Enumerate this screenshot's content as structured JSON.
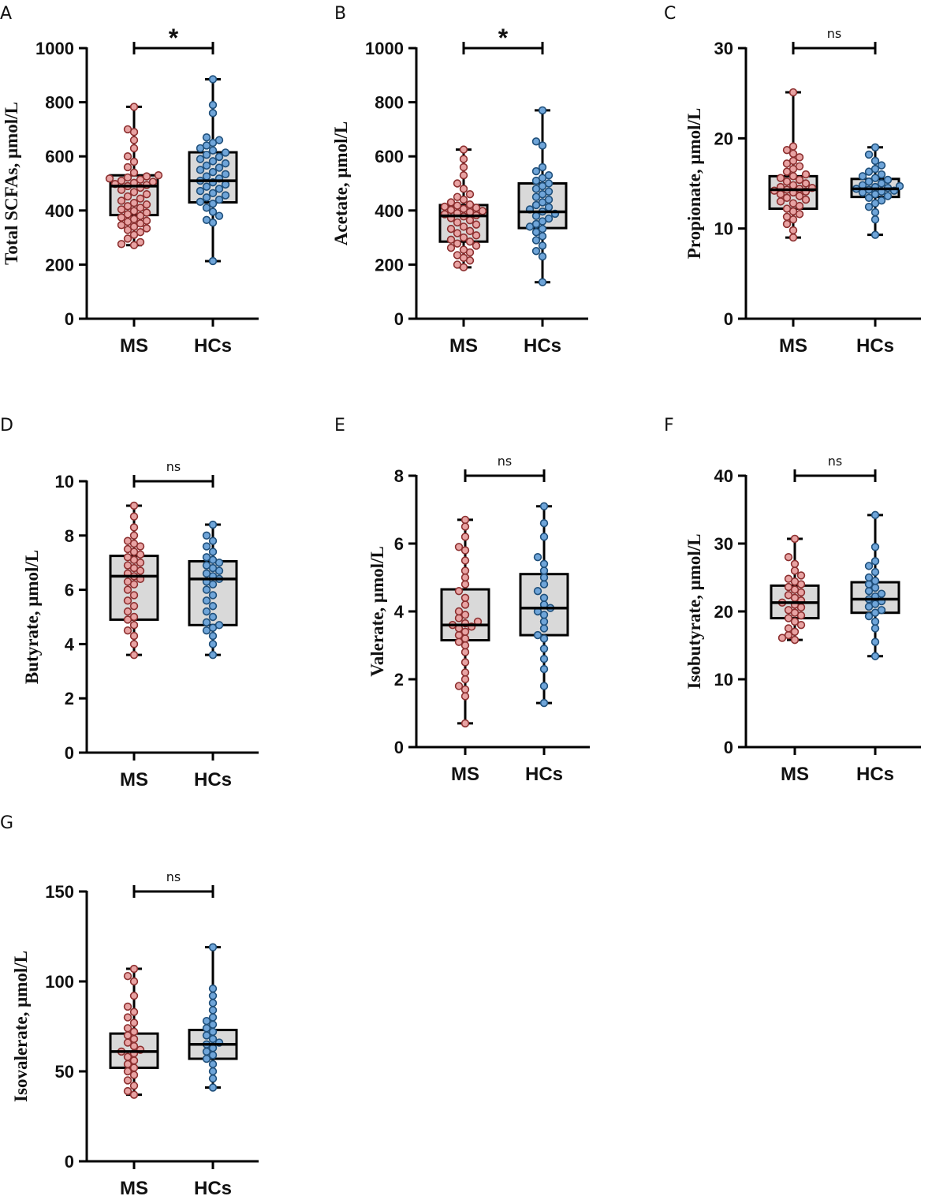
{
  "figure": {
    "title": ""
  },
  "colors": {
    "ms_fill": "#e8a3a3",
    "ms_stroke": "#8c2f2f",
    "hc_fill": "#6fa5d9",
    "hc_stroke": "#1f4f7a",
    "box_fill": "#d9d9d9",
    "axis": "#000000"
  },
  "chart_data": [
    {
      "type": "box",
      "panel": "A",
      "title": "",
      "ylabel": "Total SCFAs, μmol/L",
      "xlabel": "",
      "ylim": [
        0,
        1000
      ],
      "yticks": [
        0,
        200,
        400,
        600,
        800,
        1000
      ],
      "categories": [
        "MS",
        "HCs"
      ],
      "significance": "*",
      "series": [
        {
          "name": "MS",
          "min": 272,
          "q1": 383,
          "median": 490,
          "q3": 530,
          "max": 783,
          "points": [
            272,
            276,
            283,
            296,
            310,
            320,
            328,
            334,
            340,
            346,
            352,
            358,
            362,
            368,
            374,
            380,
            386,
            392,
            398,
            404,
            410,
            416,
            422,
            428,
            436,
            444,
            452,
            460,
            468,
            476,
            484,
            490,
            494,
            498,
            502,
            506,
            510,
            514,
            518,
            522,
            526,
            530,
            540,
            560,
            580,
            600,
            630,
            660,
            690,
            700,
            783
          ]
        },
        {
          "name": "HCs",
          "min": 213,
          "q1": 430,
          "median": 510,
          "q3": 615,
          "max": 885,
          "points": [
            213,
            355,
            365,
            380,
            395,
            410,
            425,
            432,
            440,
            448,
            456,
            464,
            472,
            480,
            488,
            496,
            504,
            510,
            518,
            526,
            534,
            542,
            550,
            558,
            566,
            574,
            582,
            590,
            598,
            606,
            614,
            622,
            630,
            640,
            650,
            660,
            670,
            760,
            790,
            885
          ]
        }
      ]
    },
    {
      "type": "box",
      "panel": "B",
      "title": "",
      "ylabel": "Acetate, μmol/L",
      "xlabel": "",
      "ylim": [
        0,
        1000
      ],
      "yticks": [
        0,
        200,
        400,
        600,
        800,
        1000
      ],
      "categories": [
        "MS",
        "HCs"
      ],
      "significance": "*",
      "series": [
        {
          "name": "MS",
          "min": 190,
          "q1": 285,
          "median": 380,
          "q3": 420,
          "max": 625,
          "points": [
            190,
            200,
            215,
            225,
            235,
            245,
            255,
            262,
            270,
            278,
            285,
            292,
            300,
            308,
            316,
            324,
            332,
            340,
            348,
            356,
            364,
            372,
            378,
            382,
            386,
            390,
            394,
            398,
            402,
            406,
            410,
            414,
            418,
            422,
            430,
            440,
            450,
            460,
            480,
            500,
            530,
            560,
            590,
            625
          ]
        },
        {
          "name": "HCs",
          "min": 135,
          "q1": 335,
          "median": 395,
          "q3": 500,
          "max": 770,
          "points": [
            135,
            230,
            250,
            270,
            290,
            305,
            320,
            332,
            340,
            350,
            360,
            370,
            380,
            388,
            396,
            404,
            412,
            420,
            430,
            440,
            450,
            460,
            470,
            480,
            490,
            500,
            510,
            520,
            530,
            545,
            560,
            640,
            655,
            770
          ]
        }
      ]
    },
    {
      "type": "box",
      "panel": "C",
      "title": "",
      "ylabel": "Propionate, μmol/L",
      "xlabel": "",
      "ylim": [
        0,
        30
      ],
      "yticks": [
        0,
        10,
        20,
        30
      ],
      "categories": [
        "MS",
        "HCs"
      ],
      "significance": "ns",
      "series": [
        {
          "name": "MS",
          "min": 9,
          "q1": 12.2,
          "median": 14.3,
          "q3": 15.8,
          "max": 25.1,
          "points": [
            9.0,
            9.8,
            10.5,
            11.0,
            11.3,
            11.6,
            11.9,
            12.2,
            12.5,
            12.8,
            13.0,
            13.2,
            13.4,
            13.6,
            13.8,
            14.0,
            14.1,
            14.2,
            14.3,
            14.4,
            14.5,
            14.6,
            14.8,
            15.0,
            15.2,
            15.4,
            15.6,
            15.8,
            16.0,
            16.3,
            16.6,
            16.9,
            17.2,
            17.5,
            17.9,
            18.3,
            18.7,
            19.1,
            25.1
          ]
        },
        {
          "name": "HCs",
          "min": 9.3,
          "q1": 13.5,
          "median": 14.4,
          "q3": 15.5,
          "max": 19,
          "points": [
            9.3,
            11.0,
            11.8,
            12.4,
            12.8,
            13.1,
            13.4,
            13.6,
            13.8,
            14.0,
            14.1,
            14.2,
            14.3,
            14.4,
            14.5,
            14.6,
            14.7,
            14.8,
            15.0,
            15.2,
            15.4,
            15.6,
            15.8,
            16.0,
            16.3,
            16.6,
            17.0,
            17.5,
            18.2,
            19.0
          ]
        }
      ]
    },
    {
      "type": "box",
      "panel": "D",
      "title": "",
      "ylabel": "Butyrate, μmol/L",
      "xlabel": "",
      "ylim": [
        0,
        10
      ],
      "yticks": [
        0,
        2,
        4,
        6,
        8,
        10
      ],
      "categories": [
        "MS",
        "HCs"
      ],
      "significance": "ns",
      "series": [
        {
          "name": "MS",
          "min": 3.6,
          "q1": 4.9,
          "median": 6.5,
          "q3": 7.25,
          "max": 9.1,
          "points": [
            3.6,
            4.0,
            4.3,
            4.5,
            4.7,
            4.9,
            5.0,
            5.2,
            5.4,
            5.6,
            5.8,
            6.0,
            6.2,
            6.3,
            6.4,
            6.5,
            6.6,
            6.7,
            6.8,
            6.9,
            7.0,
            7.1,
            7.2,
            7.3,
            7.4,
            7.5,
            7.6,
            7.7,
            7.8,
            8.0,
            8.3,
            8.7,
            9.1
          ]
        },
        {
          "name": "HCs",
          "min": 3.6,
          "q1": 4.7,
          "median": 6.4,
          "q3": 7.05,
          "max": 8.4,
          "points": [
            3.6,
            4.0,
            4.3,
            4.5,
            4.6,
            4.7,
            4.8,
            5.0,
            5.2,
            5.4,
            5.6,
            5.8,
            6.0,
            6.2,
            6.3,
            6.4,
            6.5,
            6.6,
            6.7,
            6.8,
            6.9,
            7.0,
            7.1,
            7.2,
            7.4,
            7.6,
            7.8,
            8.0,
            8.4
          ]
        }
      ]
    },
    {
      "type": "box",
      "panel": "E",
      "title": "",
      "ylabel": "Valerate, μmol/L",
      "xlabel": "",
      "ylim": [
        0,
        8
      ],
      "yticks": [
        0,
        2,
        4,
        6,
        8
      ],
      "categories": [
        "MS",
        "HCs"
      ],
      "significance": "ns",
      "series": [
        {
          "name": "MS",
          "min": 0.7,
          "q1": 3.15,
          "median": 3.6,
          "q3": 4.65,
          "max": 6.7,
          "points": [
            0.7,
            1.5,
            1.7,
            1.8,
            2.0,
            2.2,
            2.5,
            2.8,
            3.0,
            3.1,
            3.2,
            3.3,
            3.4,
            3.5,
            3.55,
            3.6,
            3.65,
            3.7,
            3.8,
            3.9,
            4.0,
            4.2,
            4.4,
            4.6,
            4.8,
            5.0,
            5.2,
            5.5,
            5.8,
            5.9,
            6.2,
            6.5,
            6.7
          ]
        },
        {
          "name": "HCs",
          "min": 1.3,
          "q1": 3.3,
          "median": 4.1,
          "q3": 5.1,
          "max": 7.1,
          "points": [
            1.3,
            1.8,
            2.3,
            2.6,
            2.9,
            3.2,
            3.3,
            3.5,
            3.7,
            3.9,
            4.0,
            4.1,
            4.2,
            4.4,
            4.6,
            4.8,
            5.0,
            5.2,
            5.4,
            5.6,
            6.2,
            6.6,
            7.1
          ]
        }
      ]
    },
    {
      "type": "box",
      "panel": "F",
      "title": "",
      "ylabel": "Isobutyrate, μmol/L",
      "xlabel": "",
      "ylim": [
        0,
        40
      ],
      "yticks": [
        0,
        10,
        20,
        30,
        40
      ],
      "categories": [
        "MS",
        "HCs"
      ],
      "significance": "ns",
      "series": [
        {
          "name": "MS",
          "min": 15.8,
          "q1": 19,
          "median": 21.3,
          "q3": 23.8,
          "max": 30.7,
          "points": [
            15.8,
            16.1,
            16.5,
            17.0,
            17.5,
            18.0,
            18.5,
            19.0,
            19.4,
            19.8,
            20.2,
            20.6,
            21.0,
            21.3,
            21.6,
            22.0,
            22.4,
            22.8,
            23.2,
            23.6,
            24.0,
            24.4,
            24.8,
            25.3,
            26.0,
            27.0,
            28.0,
            30.7
          ]
        },
        {
          "name": "HCs",
          "min": 13.4,
          "q1": 19.8,
          "median": 21.8,
          "q3": 24.3,
          "max": 34.2,
          "points": [
            13.4,
            15.5,
            17.5,
            18.5,
            19.3,
            19.8,
            20.2,
            20.7,
            21.1,
            21.5,
            21.8,
            22.2,
            22.6,
            23.0,
            23.5,
            24.0,
            24.5,
            25.0,
            25.8,
            26.7,
            27.4,
            29.5,
            34.2
          ]
        }
      ]
    },
    {
      "type": "box",
      "panel": "G",
      "title": "",
      "ylabel": "Isovalerate, μmol/L",
      "xlabel": "",
      "ylim": [
        0,
        150
      ],
      "yticks": [
        0,
        50,
        100,
        150
      ],
      "categories": [
        "MS",
        "HCs"
      ],
      "significance": "ns",
      "series": [
        {
          "name": "MS",
          "min": 37,
          "q1": 52,
          "median": 61,
          "q3": 71,
          "max": 107,
          "points": [
            37,
            39,
            42,
            45,
            48,
            50,
            52,
            54,
            56,
            58,
            60,
            61,
            62,
            64,
            66,
            68,
            70,
            72,
            74,
            77,
            80,
            83,
            86,
            92,
            100,
            103,
            107
          ]
        },
        {
          "name": "HCs",
          "min": 41,
          "q1": 57,
          "median": 65,
          "q3": 73,
          "max": 119,
          "points": [
            41,
            46,
            50,
            54,
            57,
            59,
            61,
            63,
            65,
            66,
            68,
            70,
            72,
            74,
            76,
            78,
            80,
            84,
            88,
            92,
            96,
            119
          ]
        }
      ]
    }
  ]
}
